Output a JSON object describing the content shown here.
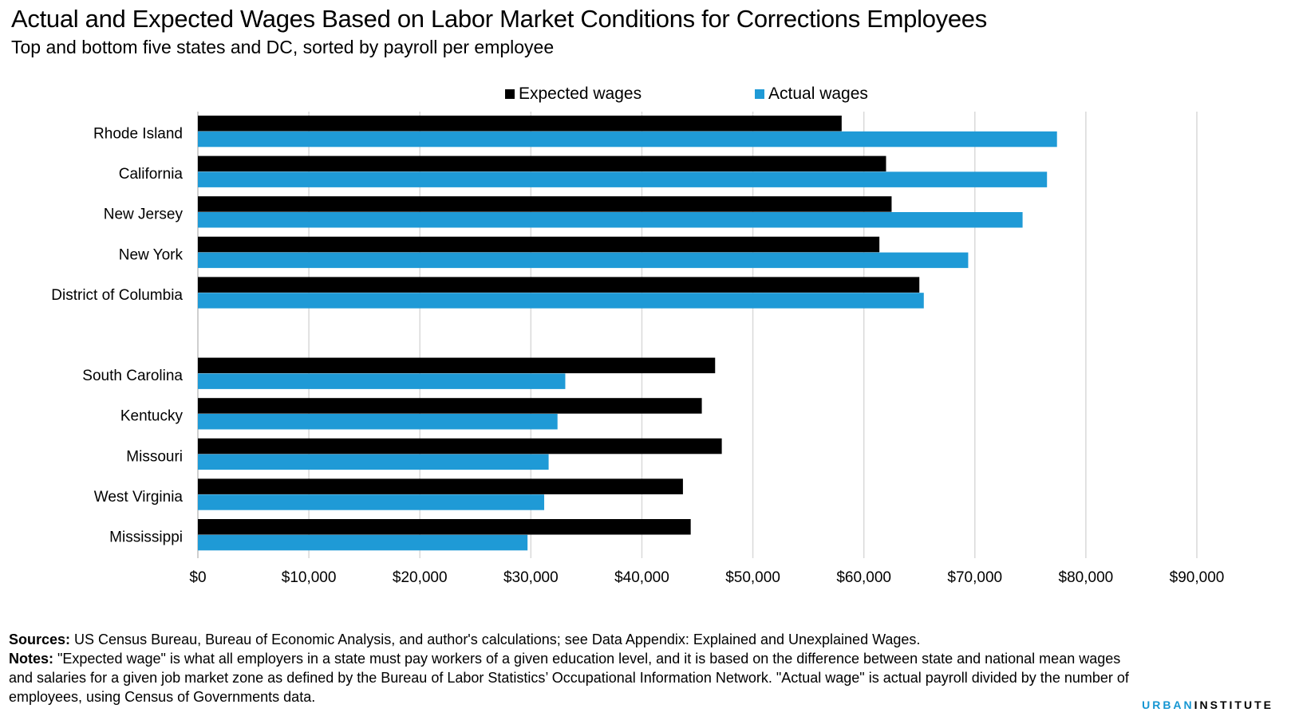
{
  "title": "Actual and Expected Wages Based on Labor Market Conditions for Corrections Employees",
  "subtitle": "Top and bottom five states and DC, sorted by payroll per employee",
  "legend": {
    "expected_label": "Expected wages",
    "actual_label": "Actual wages"
  },
  "colors": {
    "expected": "#000000",
    "actual": "#1f9ad6",
    "grid": "#d9d9d9",
    "brand_accent": "#1696d2"
  },
  "chart_data": {
    "type": "bar",
    "orientation": "horizontal",
    "categories": [
      "Rhode Island",
      "California",
      "New Jersey",
      "New York",
      "District of Columbia",
      "South Carolina",
      "Kentucky",
      "Missouri",
      "West Virginia",
      "Mississippi"
    ],
    "gap_after_index": 4,
    "series": [
      {
        "name": "Expected wages",
        "values": [
          58000,
          62000,
          62500,
          61400,
          65000,
          46600,
          45400,
          47200,
          43700,
          44400
        ]
      },
      {
        "name": "Actual wages",
        "values": [
          77400,
          76500,
          74300,
          69400,
          65400,
          33100,
          32400,
          31600,
          31200,
          29700
        ]
      }
    ],
    "xlim": [
      0,
      90000
    ],
    "xticks": [
      "$0",
      "$10,000",
      "$20,000",
      "$30,000",
      "$40,000",
      "$50,000",
      "$60,000",
      "$70,000",
      "$80,000",
      "$90,000"
    ],
    "grid": true,
    "legend_position": "top"
  },
  "footer": {
    "sources_label": "Sources:",
    "sources_text": " US Census Bureau, Bureau of Economic Analysis, and author's calculations; see Data Appendix: Explained and Unexplained Wages.",
    "notes_label": "Notes:",
    "notes_text": " \"Expected wage\" is what all employers in a state must pay workers of a given education level, and it is based on the difference between state and national mean wages and salaries for a given job market zone as defined by the Bureau of Labor Statistics’ Occupational Information Network. \"Actual wage\" is actual payroll divided by the number of employees, using Census of Governments data.",
    "brand_part1": "URBAN",
    "brand_part2": "INSTITUTE"
  }
}
